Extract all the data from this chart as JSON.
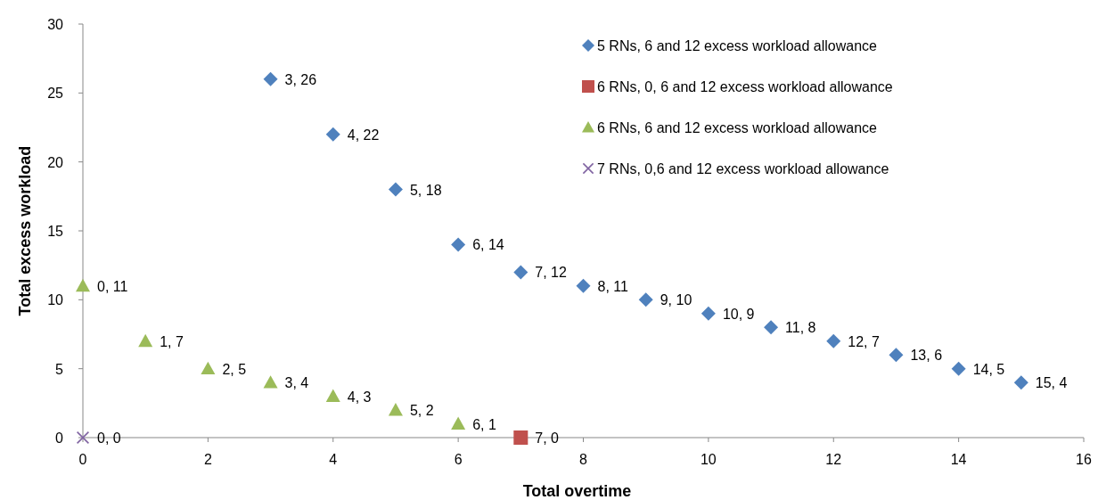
{
  "chart_data": {
    "type": "scatter",
    "xlabel": "Total overtime",
    "ylabel": "Total excess workload",
    "xlim": [
      0,
      16
    ],
    "xticks": [
      0,
      2,
      4,
      6,
      8,
      10,
      12,
      14,
      16
    ],
    "ylim": [
      0,
      30
    ],
    "yticks": [
      0,
      5,
      10,
      15,
      20,
      25,
      30
    ],
    "grid": false,
    "legend": "top right",
    "series": [
      {
        "name": "5 RNs, 6 and 12 excess workload allowance",
        "color": "#4f81bd",
        "marker": "diamond",
        "x": [
          3,
          4,
          5,
          6,
          7,
          8,
          9,
          10,
          11,
          12,
          13,
          14,
          15
        ],
        "values": [
          26,
          22,
          18,
          14,
          12,
          11,
          10,
          9,
          8,
          7,
          6,
          5,
          4
        ],
        "value_labels": [
          "3, 26",
          "4, 22",
          "5, 18",
          "6, 14",
          "7, 12",
          "8, 11",
          "9, 10",
          "10, 9",
          "11, 8",
          "12, 7",
          "13, 6",
          "14, 5",
          "15, 4"
        ]
      },
      {
        "name": "6 RNs, 0, 6 and 12 excess workload allowance",
        "color": "#c0504d",
        "marker": "square",
        "x": [
          7
        ],
        "values": [
          0
        ],
        "value_labels": [
          "7, 0"
        ]
      },
      {
        "name": "6 RNs, 6 and 12 excess workload allowance",
        "color": "#9bbb59",
        "marker": "triangle",
        "x": [
          0,
          1,
          2,
          3,
          4,
          5,
          6
        ],
        "values": [
          11,
          7,
          5,
          4,
          3,
          2,
          1
        ],
        "value_labels": [
          "0, 11",
          "1, 7",
          "2, 5",
          "3, 4",
          "4, 3",
          "5, 2",
          "6, 1"
        ]
      },
      {
        "name": "7 RNs, 0,6 and 12 excess workload allowance",
        "color": "#8064a2",
        "marker": "cross",
        "x": [
          0
        ],
        "values": [
          0
        ],
        "value_labels": [
          "0, 0"
        ]
      }
    ]
  }
}
